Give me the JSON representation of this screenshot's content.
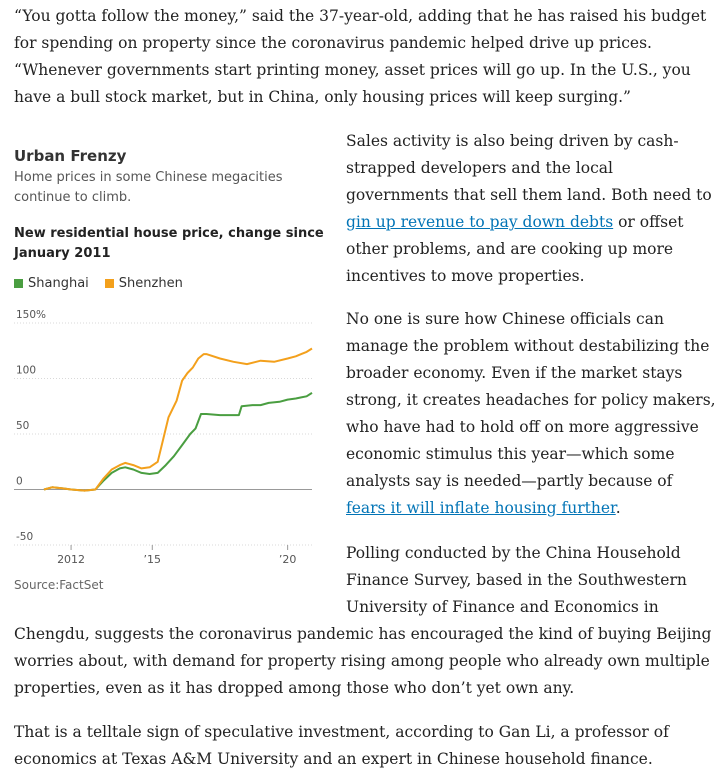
{
  "paragraphs": {
    "p1": "“You gotta follow the money,” said the 37-year-old, adding that he has raised his budget for spending on property since the coronavirus pandemic helped drive up prices. “Whenever governments start printing money, asset prices will go up. In the U.S., you have a bull stock market, but in China, only housing prices will keep surging.”",
    "p2_before": "Sales activity is also being driven by cash-strapped developers and the local governments that sell them land. Both need to ",
    "p2_link": "gin up revenue to pay down debts",
    "p2_after": " or offset other problems, and are cooking up more incentives to move properties.",
    "p3_before": "No one is sure how Chinese officials can manage the problem without destabilizing the broader economy. Even if the market stays strong, it creates headaches for policy makers, who have had to hold off on more aggressive economic stimulus this year—which some analysts say is needed—partly because of ",
    "p3_link": "fears it will inflate housing further",
    "p3_after": ".",
    "p4_l1": "Polling conducted by the China Household",
    "p4_l2": "Finance Survey, based in the Southwestern",
    "p4_l3": "University of Finance and Economics in",
    "p4_rest": "Chengdu, suggests the coronavirus pandemic has encouraged the kind of buying Beijing worries about, with demand for property rising among people who already own multiple properties, even as it has dropped among those who don’t yet own any.",
    "p5": "That is a telltale sign of speculative investment, according to Gan Li, a professor of economics at Texas A&M University and an expert in Chinese household finance."
  },
  "chart_block": {
    "title": "Urban Frenzy",
    "subtitle": "Home prices in some Chinese megacities continue to climb.",
    "heading": "New residential house price, change since January 2011",
    "source": "Source:FactSet"
  },
  "chart_data": {
    "type": "line",
    "title": "New residential house price, change since January 2011",
    "xlabel": "",
    "ylabel": "",
    "ylim": [
      -50,
      150
    ],
    "xlim": [
      2011.0,
      2020.9
    ],
    "y_ticks": [
      150,
      100,
      50,
      0,
      -50
    ],
    "y_tick_labels": [
      "150%",
      "100",
      "50",
      "0",
      "-50"
    ],
    "x_ticks": [
      2012,
      2015,
      2020
    ],
    "x_tick_labels": [
      "2012",
      "’15",
      "’20"
    ],
    "grid": true,
    "legend_position": "top-left",
    "series": [
      {
        "name": "Shanghai",
        "color": "#4a9e41",
        "x": [
          2011.0,
          2011.3,
          2011.7,
          2012.0,
          2012.5,
          2012.9,
          2013.2,
          2013.5,
          2013.8,
          2014.0,
          2014.3,
          2014.6,
          2014.9,
          2015.2,
          2015.5,
          2015.8,
          2016.1,
          2016.4,
          2016.6,
          2016.8,
          2017.0,
          2017.5,
          2018.0,
          2018.2,
          2018.3,
          2018.7,
          2019.0,
          2019.3,
          2019.7,
          2020.0,
          2020.3,
          2020.5,
          2020.7,
          2020.9
        ],
        "values": [
          0,
          2,
          1,
          0,
          -1,
          0,
          8,
          15,
          19,
          20,
          18,
          15,
          14,
          15,
          22,
          30,
          40,
          50,
          55,
          68,
          68,
          67,
          67,
          67,
          75,
          76,
          76,
          78,
          79,
          81,
          82,
          83,
          84,
          87
        ]
      },
      {
        "name": "Shenzhen",
        "color": "#f3a01c",
        "x": [
          2011.0,
          2011.3,
          2011.7,
          2012.0,
          2012.5,
          2012.9,
          2013.2,
          2013.5,
          2013.8,
          2014.0,
          2014.3,
          2014.6,
          2014.9,
          2015.2,
          2015.4,
          2015.6,
          2015.9,
          2016.1,
          2016.3,
          2016.5,
          2016.7,
          2016.9,
          2017.0,
          2017.5,
          2018.0,
          2018.5,
          2019.0,
          2019.5,
          2020.0,
          2020.3,
          2020.5,
          2020.7,
          2020.9
        ],
        "values": [
          0,
          2,
          1,
          0,
          -1,
          0,
          10,
          18,
          22,
          24,
          22,
          19,
          20,
          25,
          45,
          65,
          80,
          98,
          105,
          110,
          118,
          122,
          122,
          118,
          115,
          113,
          116,
          115,
          118,
          120,
          122,
          124,
          127
        ]
      }
    ]
  }
}
